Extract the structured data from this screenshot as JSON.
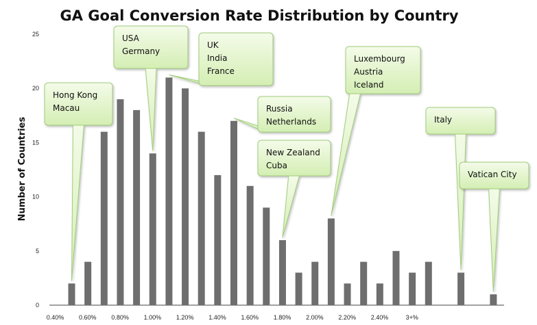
{
  "chart_data": {
    "type": "bar",
    "title": "GA Goal Conversion Rate Distribution by Country",
    "ylabel": "Number of Countries",
    "xlabel": "",
    "ylim": [
      0,
      25
    ],
    "y_ticks": [
      "0",
      "5",
      "10",
      "15",
      "20",
      "25"
    ],
    "x_tick_labels": [
      "0.40%",
      "0.60%",
      "0.80%",
      "1.00%",
      "1.20%",
      "1.40%",
      "1.60%",
      "1.80%",
      "2.00%",
      "2.20%",
      "2.40%",
      "3+%"
    ],
    "values": [
      2,
      4,
      16,
      19,
      18,
      14,
      21,
      20,
      16,
      12,
      17,
      11,
      9,
      6,
      3,
      4,
      8,
      2,
      4,
      2,
      5,
      3,
      4,
      0,
      3,
      0,
      1
    ],
    "grid": false,
    "legend": "none",
    "bar_color": "#6e6e6e",
    "callout_fill": "#dff3c5",
    "callout_stroke": "#9fcc79",
    "callouts": [
      {
        "lines": [
          "Hong Kong",
          "Macau"
        ],
        "bar": 0
      },
      {
        "lines": [
          "USA",
          "Germany"
        ],
        "bar": 5
      },
      {
        "lines": [
          "UK",
          "India",
          "France"
        ],
        "bar": 6
      },
      {
        "lines": [
          "Russia",
          "Netherlands"
        ],
        "bar": 10
      },
      {
        "lines": [
          "New Zealand",
          "Cuba"
        ],
        "bar": 13
      },
      {
        "lines": [
          "Luxembourg",
          "Austria",
          "Iceland"
        ],
        "bar": 16
      },
      {
        "lines": [
          "Italy"
        ],
        "bar": 24
      },
      {
        "lines": [
          "Vatican City"
        ],
        "bar": 26
      }
    ]
  }
}
